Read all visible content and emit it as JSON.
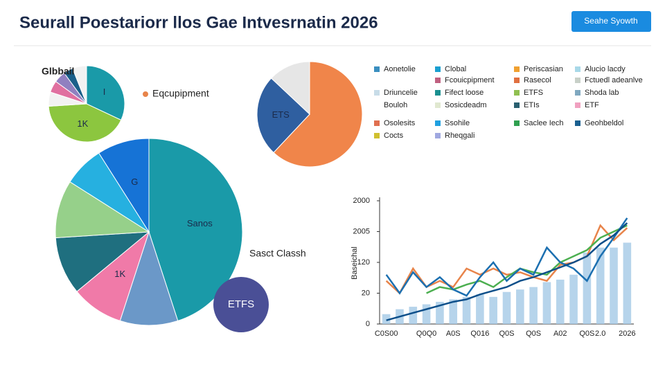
{
  "header": {
    "title": "Seurall Poestariorr llos Gae Intvesrnatin 2026",
    "button": "Seahe Syowth"
  },
  "legend": [
    {
      "name": "Aonetolie",
      "color": "#3a8fc0"
    },
    {
      "name": "Clobal",
      "color": "#1a9fd0"
    },
    {
      "name": "Periscasian",
      "color": "#f0a030"
    },
    {
      "name": "Alucio lacdy",
      "color": "#a8d8e8"
    },
    {
      "name": "Fcouicpipment",
      "color": "#c06080"
    },
    {
      "name": "Rasecol",
      "color": "#e07040"
    },
    {
      "name": "Fctuedl adeanlve",
      "color": "#c8d0c8"
    },
    {
      "name": "Driuncelie",
      "color": "#c8dce8"
    },
    {
      "name": "Fifect loose",
      "color": "#1a9090"
    },
    {
      "name": "ETFS",
      "color": "#90c050"
    },
    {
      "name": "Shoda lab",
      "color": "#80a8c0"
    },
    {
      "name": "Bouloh",
      "color": null
    },
    {
      "name": "Sosicdeadm",
      "color": "#e0e8d0"
    },
    {
      "name": "ETIs",
      "color": "#2a6070"
    },
    {
      "name": "ETF",
      "color": "#f0a0c0"
    },
    {
      "name": "Osolesits",
      "color": "#e07050"
    },
    {
      "name": "Ssohile",
      "color": "#20a0e0"
    },
    {
      "name": "Saclee Iech",
      "color": "#30a050"
    },
    {
      "name": "Geohbeldol",
      "color": "#1a6090"
    },
    {
      "name": "Cocts",
      "color": "#d0c030"
    },
    {
      "name": "Rheqgali",
      "color": "#a0a8e0"
    }
  ],
  "chart_data": [
    {
      "type": "pie",
      "title": "Glbbail",
      "annotation": "Eqcupipment",
      "annotation_color": "#e8844a",
      "values": [
        32,
        42,
        6,
        5,
        5,
        4,
        6
      ],
      "colors": [
        "#1a9aa8",
        "#8cc63f",
        "#f2f2f2",
        "#e070a0",
        "#9080c0",
        "#1a5f8a",
        "#f2f2f2"
      ],
      "slice_labels": [
        "I",
        "1K",
        null,
        null,
        null,
        null,
        null
      ]
    },
    {
      "type": "pie",
      "annotation": "Sasct Classh",
      "badge": "ETFS",
      "badge_color": "#4a4f96",
      "values": [
        45,
        10,
        9,
        10,
        10,
        7,
        9
      ],
      "colors": [
        "#1a9aa8",
        "#6b98c8",
        "#f07aa8",
        "#1f6f7f",
        "#96d08a",
        "#26b0e0",
        "#1673d6"
      ],
      "slice_labels": [
        "Sanos",
        null,
        "1K",
        null,
        null,
        null,
        "G"
      ]
    },
    {
      "type": "pie",
      "values": [
        62,
        25,
        13
      ],
      "colors": [
        "#f0854a",
        "#2f5fa0",
        "#e6e6e6"
      ],
      "slice_labels": [
        null,
        "ETS",
        null
      ]
    },
    {
      "type": "bar",
      "ylabel": "Baseichal",
      "categories": [
        "C0S00",
        null,
        null,
        "Q0Q0",
        null,
        "A0S",
        null,
        "Q016",
        null,
        "Q0S",
        null,
        "Q0S",
        null,
        "A02",
        null,
        "Q0S",
        "2.0",
        null,
        "2026"
      ],
      "ylim": [
        0,
        100
      ],
      "yticks": [
        0,
        {
          "value": 25,
          "label": "20"
        },
        {
          "value": 50,
          "label": "120"
        },
        {
          "value": 75,
          "label": "2005"
        },
        {
          "value": 100,
          "label": "2000"
        }
      ],
      "series": [
        {
          "type": "bar",
          "color": "#a9cde8",
          "values": [
            8,
            12,
            14,
            16,
            18,
            20,
            22,
            24,
            22,
            26,
            28,
            30,
            34,
            36,
            40,
            58,
            62,
            62,
            66
          ]
        },
        {
          "type": "line",
          "color": "#e8844a",
          "values": [
            35,
            25,
            45,
            30,
            35,
            30,
            45,
            40,
            45,
            40,
            42,
            38,
            35,
            48,
            50,
            55,
            80,
            68,
            78
          ]
        },
        {
          "type": "line",
          "color": "#4caf50",
          "values": [
            null,
            null,
            null,
            25,
            30,
            28,
            32,
            35,
            30,
            38,
            45,
            42,
            40,
            50,
            55,
            60,
            70,
            75,
            80
          ]
        },
        {
          "type": "line",
          "color": "#1b6fb0",
          "values": [
            40,
            25,
            42,
            30,
            38,
            28,
            23,
            38,
            50,
            35,
            45,
            40,
            62,
            50,
            45,
            35,
            55,
            70,
            86
          ]
        },
        {
          "type": "line",
          "color": "#0d4f8a",
          "values": [
            3,
            6,
            9,
            12,
            15,
            18,
            20,
            24,
            27,
            30,
            35,
            38,
            42,
            46,
            50,
            55,
            65,
            72,
            82
          ]
        }
      ]
    }
  ]
}
